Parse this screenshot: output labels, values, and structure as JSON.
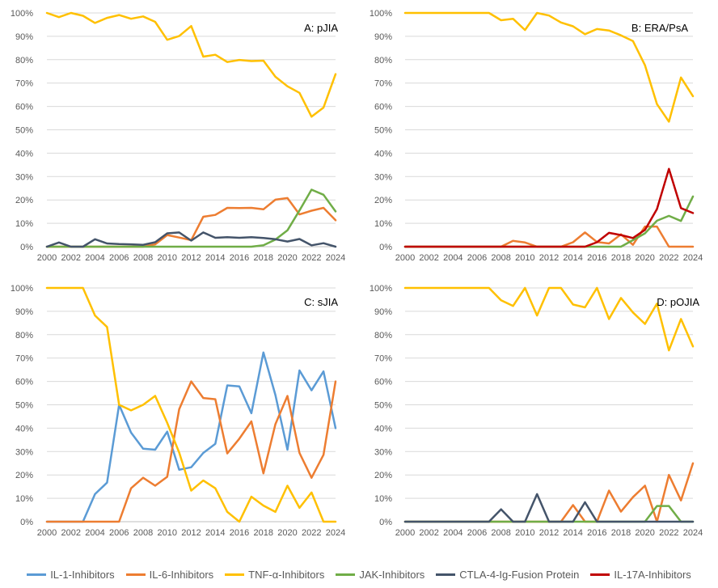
{
  "legend": [
    {
      "name": "IL-1-Inhibitors",
      "color": "#5B9BD5"
    },
    {
      "name": "IL-6-Inhibitors",
      "color": "#ED7D31"
    },
    {
      "name": "TNF-α-Inhibitors",
      "color": "#FFC000"
    },
    {
      "name": "JAK-Inhibitors",
      "color": "#70AD47"
    },
    {
      "name": "CTLA-4-Ig-Fusion Protein",
      "color": "#44546A"
    },
    {
      "name": "IL-17A-Inhibitors",
      "color": "#C00000"
    }
  ],
  "chart_data": [
    {
      "type": "line",
      "title": "A: pJIA",
      "x": [
        2000,
        2001,
        2002,
        2003,
        2004,
        2005,
        2006,
        2007,
        2008,
        2009,
        2010,
        2011,
        2012,
        2013,
        2014,
        2015,
        2016,
        2017,
        2018,
        2019,
        2020,
        2021,
        2022,
        2023,
        2024
      ],
      "xticks": [
        2000,
        2002,
        2004,
        2006,
        2008,
        2010,
        2012,
        2014,
        2016,
        2018,
        2020,
        2022,
        2024
      ],
      "ylim": [
        0,
        100
      ],
      "yticks": [
        "0%",
        "10%",
        "20%",
        "30%",
        "40%",
        "50%",
        "60%",
        "70%",
        "80%",
        "90%",
        "100%"
      ],
      "series": [
        {
          "name": "TNF-α-Inhibitors",
          "color": "#FFC000",
          "values": [
            100,
            98.2,
            100,
            98.8,
            95.7,
            97.9,
            99.1,
            97.5,
            98.5,
            96.2,
            88.5,
            90.1,
            94.4,
            81.3,
            82.1,
            79.0,
            79.9,
            79.4,
            79.6,
            72.7,
            68.6,
            65.8,
            55.6,
            59.5,
            73.8
          ]
        },
        {
          "name": "IL-6-Inhibitors",
          "color": "#ED7D31",
          "values": [
            0,
            0,
            0,
            0,
            0,
            0,
            0,
            0,
            0,
            1.0,
            5.0,
            3.9,
            2.8,
            12.8,
            13.6,
            16.6,
            16.5,
            16.6,
            16.0,
            20.1,
            20.8,
            13.8,
            15.4,
            16.6,
            11.3
          ]
        },
        {
          "name": "JAK-Inhibitors",
          "color": "#70AD47",
          "values": [
            0,
            0,
            0,
            0,
            0,
            0,
            0,
            0,
            0,
            0,
            0,
            0,
            0,
            0,
            0,
            0,
            0,
            0,
            0.6,
            3.0,
            7.0,
            15.5,
            24.4,
            22.2,
            15.1
          ]
        },
        {
          "name": "CTLA-4-Ig-Fusion Protein",
          "color": "#44546A",
          "values": [
            0,
            1.8,
            0,
            0,
            3.2,
            1.4,
            1.1,
            1.0,
            0.8,
            1.9,
            5.7,
            6.1,
            2.6,
            6.1,
            3.8,
            4.1,
            3.8,
            4.1,
            3.7,
            3.2,
            2.2,
            3.3,
            0.6,
            1.5,
            0
          ]
        }
      ]
    },
    {
      "type": "line",
      "title": "B: ERA/PsA",
      "x": [
        2000,
        2001,
        2002,
        2003,
        2004,
        2005,
        2006,
        2007,
        2008,
        2009,
        2010,
        2011,
        2012,
        2013,
        2014,
        2015,
        2016,
        2017,
        2018,
        2019,
        2020,
        2021,
        2022,
        2023,
        2024
      ],
      "xticks": [
        2000,
        2002,
        2004,
        2006,
        2008,
        2010,
        2012,
        2014,
        2016,
        2018,
        2020,
        2022,
        2024
      ],
      "ylim": [
        0,
        100
      ],
      "yticks": [
        "0%",
        "10%",
        "20%",
        "30%",
        "40%",
        "50%",
        "60%",
        "70%",
        "80%",
        "90%",
        "100%"
      ],
      "series": [
        {
          "name": "TNF-α-Inhibitors",
          "color": "#FFC000",
          "values": [
            100,
            100,
            100,
            100,
            100,
            100,
            100,
            100,
            96.9,
            97.5,
            92.7,
            100,
            98.9,
            95.9,
            94.3,
            90.9,
            93.1,
            92.5,
            90.4,
            88.0,
            77.6,
            61.0,
            53.5,
            72.4,
            64.4
          ]
        },
        {
          "name": "IL-6-Inhibitors",
          "color": "#ED7D31",
          "values": [
            0,
            0,
            0,
            0,
            0,
            0,
            0,
            0,
            0,
            2.5,
            1.8,
            0,
            0,
            0,
            1.9,
            6.1,
            2.0,
            1.4,
            5.3,
            0.8,
            8.6,
            8.6,
            0,
            0,
            0
          ]
        },
        {
          "name": "JAK-Inhibitors",
          "color": "#70AD47",
          "values": [
            0,
            0,
            0,
            0,
            0,
            0,
            0,
            0,
            0,
            0,
            0,
            0,
            0,
            0,
            0,
            0,
            0,
            0,
            0,
            2.8,
            5.7,
            11.1,
            13.2,
            11.0,
            21.5
          ]
        },
        {
          "name": "IL-17A-Inhibitors",
          "color": "#C00000",
          "values": [
            0,
            0,
            0,
            0,
            0,
            0,
            0,
            0,
            0,
            0,
            0,
            0,
            0,
            0,
            0,
            0,
            1.9,
            5.9,
            5.0,
            3.7,
            7.2,
            16.1,
            33.3,
            16.5,
            14.4
          ]
        }
      ]
    },
    {
      "type": "line",
      "title": "C: sJIA",
      "x": [
        2000,
        2001,
        2002,
        2003,
        2004,
        2005,
        2006,
        2007,
        2008,
        2009,
        2010,
        2011,
        2012,
        2013,
        2014,
        2015,
        2016,
        2017,
        2018,
        2019,
        2020,
        2021,
        2022,
        2023,
        2024
      ],
      "xticks": [
        2000,
        2002,
        2004,
        2006,
        2008,
        2010,
        2012,
        2014,
        2016,
        2018,
        2020,
        2022,
        2024
      ],
      "ylim": [
        0,
        100
      ],
      "yticks": [
        "0%",
        "10%",
        "20%",
        "30%",
        "40%",
        "50%",
        "60%",
        "70%",
        "80%",
        "90%",
        "100%"
      ],
      "series": [
        {
          "name": "IL-1-Inhibitors",
          "color": "#5B9BD5",
          "values": [
            0,
            0,
            0,
            0,
            11.8,
            16.7,
            50.0,
            38.1,
            31.2,
            30.8,
            38.5,
            22.2,
            23.3,
            29.4,
            33.3,
            58.3,
            57.9,
            46.4,
            72.4,
            54.2,
            30.8,
            64.7,
            56.2,
            64.3,
            40.0
          ]
        },
        {
          "name": "IL-6-Inhibitors",
          "color": "#ED7D31",
          "values": [
            0,
            0,
            0,
            0,
            0,
            0,
            0,
            14.3,
            18.8,
            15.4,
            19.2,
            48.1,
            60.0,
            52.9,
            52.4,
            29.2,
            35.5,
            42.9,
            20.7,
            41.7,
            53.8,
            29.4,
            18.8,
            28.6,
            60.0
          ]
        },
        {
          "name": "TNF-α-Inhibitors",
          "color": "#FFC000",
          "values": [
            100,
            100,
            100,
            100,
            88.2,
            83.3,
            50.0,
            47.6,
            50.0,
            53.8,
            42.3,
            29.6,
            13.3,
            17.6,
            14.3,
            4.2,
            0,
            10.7,
            6.9,
            4.2,
            15.4,
            5.9,
            12.5,
            0,
            0
          ]
        }
      ]
    },
    {
      "type": "line",
      "title": "D: pOJIA",
      "x": [
        2000,
        2001,
        2002,
        2003,
        2004,
        2005,
        2006,
        2007,
        2008,
        2009,
        2010,
        2011,
        2012,
        2013,
        2014,
        2015,
        2016,
        2017,
        2018,
        2019,
        2020,
        2021,
        2022,
        2023,
        2024
      ],
      "xticks": [
        2000,
        2002,
        2004,
        2006,
        2008,
        2010,
        2012,
        2014,
        2016,
        2018,
        2020,
        2022,
        2024
      ],
      "ylim": [
        0,
        100
      ],
      "yticks": [
        "0%",
        "10%",
        "20%",
        "30%",
        "40%",
        "50%",
        "60%",
        "70%",
        "80%",
        "90%",
        "100%"
      ],
      "series": [
        {
          "name": "TNF-α-Inhibitors",
          "color": "#FFC000",
          "values": [
            100,
            100,
            100,
            100,
            100,
            100,
            100,
            100,
            94.7,
            92.3,
            100,
            88.2,
            100,
            100,
            92.9,
            91.7,
            100,
            86.7,
            95.7,
            89.5,
            84.6,
            93.3,
            73.3,
            86.7,
            75.0
          ]
        },
        {
          "name": "IL-6-Inhibitors",
          "color": "#ED7D31",
          "values": [
            0,
            0,
            0,
            0,
            0,
            0,
            0,
            0,
            0,
            0,
            0,
            0,
            0,
            0,
            7.1,
            0,
            0,
            13.3,
            4.3,
            10.5,
            15.4,
            0,
            20.0,
            9.1,
            25.0
          ]
        },
        {
          "name": "JAK-Inhibitors",
          "color": "#70AD47",
          "values": [
            0,
            0,
            0,
            0,
            0,
            0,
            0,
            0,
            0,
            0,
            0,
            0,
            0,
            0,
            0,
            0,
            0,
            0,
            0,
            0,
            0,
            6.7,
            6.7,
            0,
            0
          ]
        },
        {
          "name": "CTLA-4-Ig-Fusion Protein",
          "color": "#44546A",
          "values": [
            0,
            0,
            0,
            0,
            0,
            0,
            0,
            0,
            5.3,
            0,
            0,
            11.8,
            0,
            0,
            0,
            8.3,
            0,
            0,
            0,
            0,
            0,
            0,
            0,
            0,
            0
          ]
        }
      ]
    }
  ]
}
